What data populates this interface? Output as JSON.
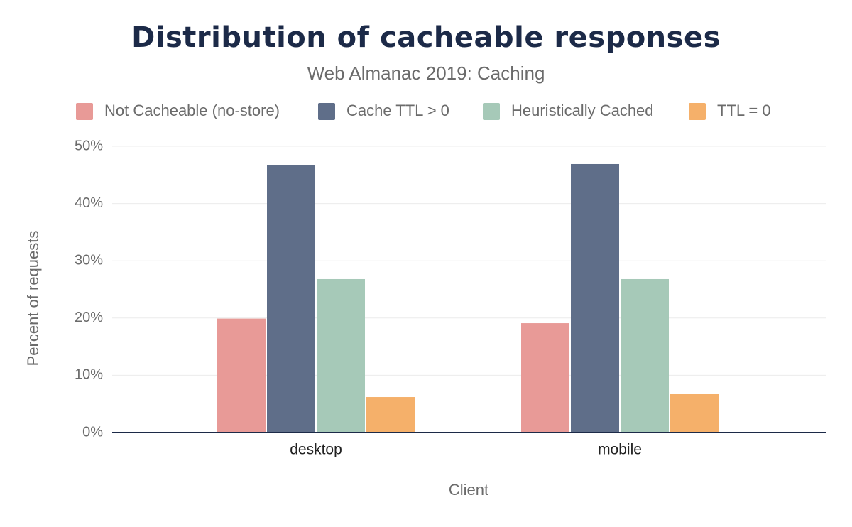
{
  "chart_data": {
    "type": "bar",
    "title": "Distribution of cacheable responses",
    "subtitle": "Web Almanac 2019: Caching",
    "x_label": "Client",
    "y_label": "Percent of requests",
    "categories": [
      "desktop",
      "mobile"
    ],
    "series": [
      {
        "name": "Not Cacheable (no-store)",
        "color": "#e89a97",
        "values": [
          19.9,
          19.1
        ]
      },
      {
        "name": "Cache TTL > 0",
        "color": "#5f6e89",
        "values": [
          46.7,
          46.9
        ]
      },
      {
        "name": "Heuristically Cached",
        "color": "#a6c9b8",
        "values": [
          26.8,
          26.8
        ]
      },
      {
        "name": "TTL = 0",
        "color": "#f5b06a",
        "values": [
          6.2,
          6.7
        ]
      }
    ],
    "ylim": [
      0,
      50
    ],
    "yticks": [
      {
        "value": 0,
        "label": "0%"
      },
      {
        "value": 10,
        "label": "10%"
      },
      {
        "value": 20,
        "label": "20%"
      },
      {
        "value": 30,
        "label": "30%"
      },
      {
        "value": 40,
        "label": "40%"
      },
      {
        "value": 50,
        "label": "50%"
      }
    ],
    "grid": true,
    "legend": "top"
  }
}
